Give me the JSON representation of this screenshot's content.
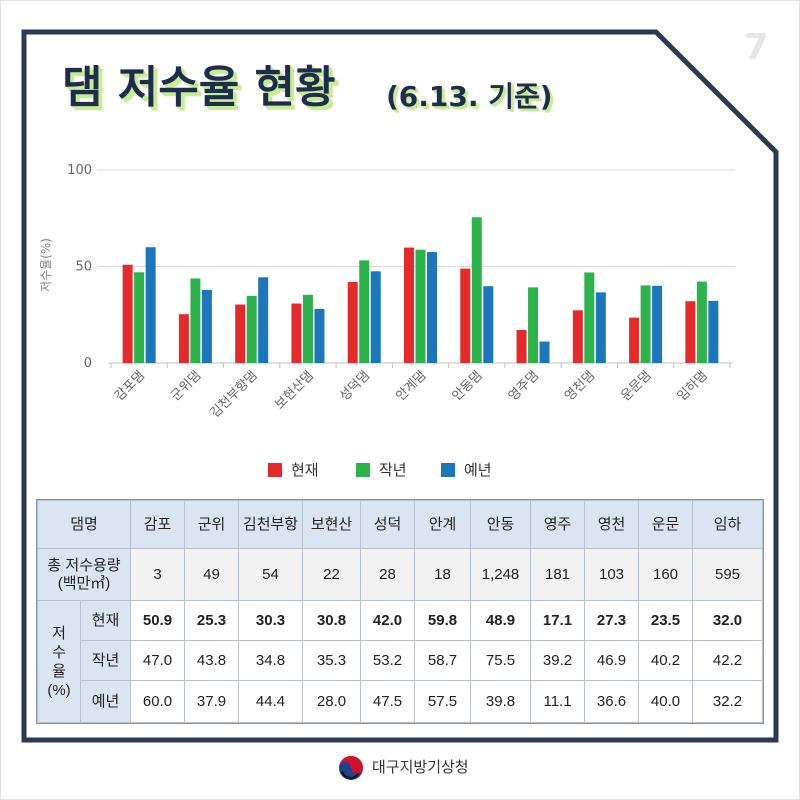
{
  "page_number": "7",
  "title": {
    "main": "댐 저수율 현황",
    "date": "(6.13. 기준)"
  },
  "colors": {
    "frame": "#2b3a55",
    "title_text": "#1f2c50",
    "title_shadow": "#c4ee90",
    "table_header_bg": "#dbe5f1"
  },
  "chart_data": {
    "type": "bar",
    "categories": [
      "감포댐",
      "군위댐",
      "김천부항댐",
      "보현산댐",
      "성덕댐",
      "안계댐",
      "안동댐",
      "영주댐",
      "영천댐",
      "운문댐",
      "임하댐"
    ],
    "series": [
      {
        "name": "현재",
        "color": "#e52a2b",
        "values": [
          50.9,
          25.3,
          30.3,
          30.8,
          42.0,
          59.8,
          48.9,
          17.1,
          27.3,
          23.5,
          32.0
        ]
      },
      {
        "name": "작년",
        "color": "#2db34b",
        "values": [
          47.0,
          43.8,
          34.8,
          35.3,
          53.2,
          58.7,
          75.5,
          39.2,
          46.9,
          40.2,
          42.2
        ]
      },
      {
        "name": "예년",
        "color": "#1c76bc",
        "values": [
          60.0,
          37.9,
          44.4,
          28.0,
          47.5,
          57.5,
          39.8,
          11.1,
          36.6,
          40.0,
          32.2
        ]
      }
    ],
    "xlabel": "",
    "ylabel": "저수율(%)",
    "ylim": [
      0,
      100
    ],
    "yticks": [
      0,
      50,
      100
    ],
    "ytick_labels": [
      "0",
      "50",
      "100"
    ],
    "grid": true,
    "legend": "bottom"
  },
  "table": {
    "header_label": "댐명",
    "columns": [
      "감포",
      "군위",
      "김천부항",
      "보현산",
      "성덕",
      "안계",
      "안동",
      "영주",
      "영천",
      "운문",
      "임하"
    ],
    "capacity_label": "총 저수용량",
    "capacity_unit": "(백만㎥)",
    "capacity": [
      "3",
      "49",
      "54",
      "22",
      "28",
      "18",
      "1,248",
      "181",
      "103",
      "160",
      "595"
    ],
    "rate_label": [
      "저",
      "수",
      "율",
      "(%)"
    ],
    "rows": [
      {
        "label": "현재",
        "values": [
          "50.9",
          "25.3",
          "30.3",
          "30.8",
          "42.0",
          "59.8",
          "48.9",
          "17.1",
          "27.3",
          "23.5",
          "32.0"
        ]
      },
      {
        "label": "작년",
        "values": [
          "47.0",
          "43.8",
          "34.8",
          "35.3",
          "53.2",
          "58.7",
          "75.5",
          "39.2",
          "46.9",
          "40.2",
          "42.2"
        ]
      },
      {
        "label": "예년",
        "values": [
          "60.0",
          "37.9",
          "44.4",
          "28.0",
          "47.5",
          "57.5",
          "39.8",
          "11.1",
          "36.6",
          "40.0",
          "32.2"
        ]
      }
    ]
  },
  "footer": {
    "org_name": "대구지방기상청",
    "logo_icon": "government-emblem-icon"
  }
}
